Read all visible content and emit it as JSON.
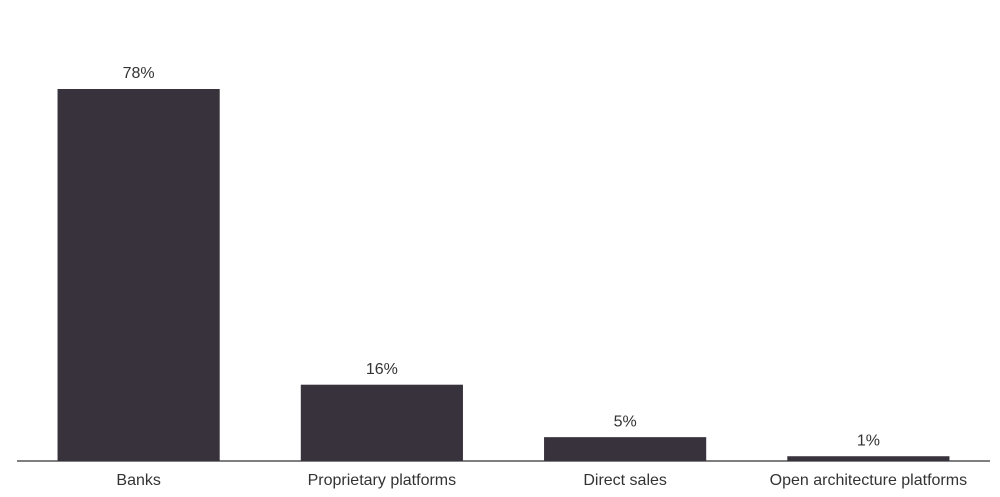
{
  "chart_data": {
    "type": "bar",
    "categories": [
      "Banks",
      "Proprietary platforms",
      "Direct sales",
      "Open architecture platforms"
    ],
    "values": [
      78,
      16,
      5,
      1
    ],
    "value_labels": [
      "78%",
      "16%",
      "5%",
      "1%"
    ],
    "color": "#38323c"
  }
}
